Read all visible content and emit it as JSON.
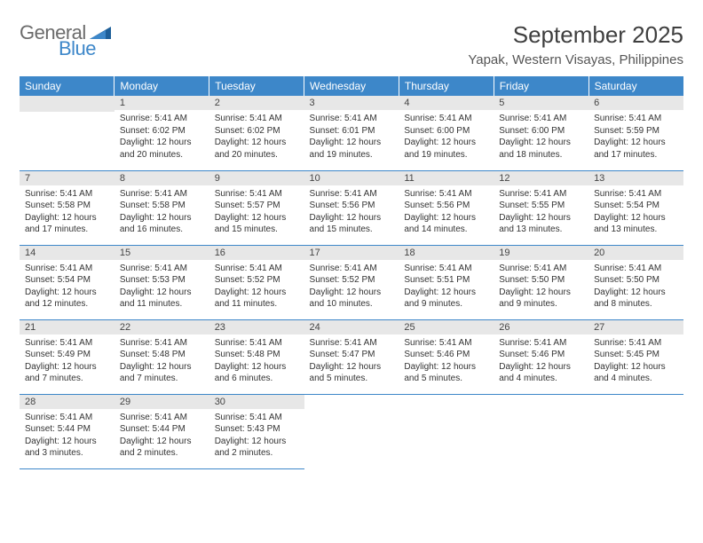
{
  "logo": {
    "word1": "General",
    "word2": "Blue"
  },
  "title": "September 2025",
  "location": "Yapak, Western Visayas, Philippines",
  "colors": {
    "header_bg": "#3d87c9",
    "header_text": "#ffffff",
    "daynum_bg": "#e7e7e7",
    "border": "#3d87c9",
    "body_text": "#333333",
    "logo_gray": "#6b6b6b",
    "logo_blue": "#3d87c9"
  },
  "dayHeaders": [
    "Sunday",
    "Monday",
    "Tuesday",
    "Wednesday",
    "Thursday",
    "Friday",
    "Saturday"
  ],
  "weeks": [
    [
      null,
      {
        "d": "1",
        "sunrise": "5:41 AM",
        "sunset": "6:02 PM",
        "daylight": "12 hours and 20 minutes."
      },
      {
        "d": "2",
        "sunrise": "5:41 AM",
        "sunset": "6:02 PM",
        "daylight": "12 hours and 20 minutes."
      },
      {
        "d": "3",
        "sunrise": "5:41 AM",
        "sunset": "6:01 PM",
        "daylight": "12 hours and 19 minutes."
      },
      {
        "d": "4",
        "sunrise": "5:41 AM",
        "sunset": "6:00 PM",
        "daylight": "12 hours and 19 minutes."
      },
      {
        "d": "5",
        "sunrise": "5:41 AM",
        "sunset": "6:00 PM",
        "daylight": "12 hours and 18 minutes."
      },
      {
        "d": "6",
        "sunrise": "5:41 AM",
        "sunset": "5:59 PM",
        "daylight": "12 hours and 17 minutes."
      }
    ],
    [
      {
        "d": "7",
        "sunrise": "5:41 AM",
        "sunset": "5:58 PM",
        "daylight": "12 hours and 17 minutes."
      },
      {
        "d": "8",
        "sunrise": "5:41 AM",
        "sunset": "5:58 PM",
        "daylight": "12 hours and 16 minutes."
      },
      {
        "d": "9",
        "sunrise": "5:41 AM",
        "sunset": "5:57 PM",
        "daylight": "12 hours and 15 minutes."
      },
      {
        "d": "10",
        "sunrise": "5:41 AM",
        "sunset": "5:56 PM",
        "daylight": "12 hours and 15 minutes."
      },
      {
        "d": "11",
        "sunrise": "5:41 AM",
        "sunset": "5:56 PM",
        "daylight": "12 hours and 14 minutes."
      },
      {
        "d": "12",
        "sunrise": "5:41 AM",
        "sunset": "5:55 PM",
        "daylight": "12 hours and 13 minutes."
      },
      {
        "d": "13",
        "sunrise": "5:41 AM",
        "sunset": "5:54 PM",
        "daylight": "12 hours and 13 minutes."
      }
    ],
    [
      {
        "d": "14",
        "sunrise": "5:41 AM",
        "sunset": "5:54 PM",
        "daylight": "12 hours and 12 minutes."
      },
      {
        "d": "15",
        "sunrise": "5:41 AM",
        "sunset": "5:53 PM",
        "daylight": "12 hours and 11 minutes."
      },
      {
        "d": "16",
        "sunrise": "5:41 AM",
        "sunset": "5:52 PM",
        "daylight": "12 hours and 11 minutes."
      },
      {
        "d": "17",
        "sunrise": "5:41 AM",
        "sunset": "5:52 PM",
        "daylight": "12 hours and 10 minutes."
      },
      {
        "d": "18",
        "sunrise": "5:41 AM",
        "sunset": "5:51 PM",
        "daylight": "12 hours and 9 minutes."
      },
      {
        "d": "19",
        "sunrise": "5:41 AM",
        "sunset": "5:50 PM",
        "daylight": "12 hours and 9 minutes."
      },
      {
        "d": "20",
        "sunrise": "5:41 AM",
        "sunset": "5:50 PM",
        "daylight": "12 hours and 8 minutes."
      }
    ],
    [
      {
        "d": "21",
        "sunrise": "5:41 AM",
        "sunset": "5:49 PM",
        "daylight": "12 hours and 7 minutes."
      },
      {
        "d": "22",
        "sunrise": "5:41 AM",
        "sunset": "5:48 PM",
        "daylight": "12 hours and 7 minutes."
      },
      {
        "d": "23",
        "sunrise": "5:41 AM",
        "sunset": "5:48 PM",
        "daylight": "12 hours and 6 minutes."
      },
      {
        "d": "24",
        "sunrise": "5:41 AM",
        "sunset": "5:47 PM",
        "daylight": "12 hours and 5 minutes."
      },
      {
        "d": "25",
        "sunrise": "5:41 AM",
        "sunset": "5:46 PM",
        "daylight": "12 hours and 5 minutes."
      },
      {
        "d": "26",
        "sunrise": "5:41 AM",
        "sunset": "5:46 PM",
        "daylight": "12 hours and 4 minutes."
      },
      {
        "d": "27",
        "sunrise": "5:41 AM",
        "sunset": "5:45 PM",
        "daylight": "12 hours and 4 minutes."
      }
    ],
    [
      {
        "d": "28",
        "sunrise": "5:41 AM",
        "sunset": "5:44 PM",
        "daylight": "12 hours and 3 minutes."
      },
      {
        "d": "29",
        "sunrise": "5:41 AM",
        "sunset": "5:44 PM",
        "daylight": "12 hours and 2 minutes."
      },
      {
        "d": "30",
        "sunrise": "5:41 AM",
        "sunset": "5:43 PM",
        "daylight": "12 hours and 2 minutes."
      },
      null,
      null,
      null,
      null
    ]
  ],
  "labels": {
    "sunrise": "Sunrise:",
    "sunset": "Sunset:",
    "daylight": "Daylight:"
  }
}
